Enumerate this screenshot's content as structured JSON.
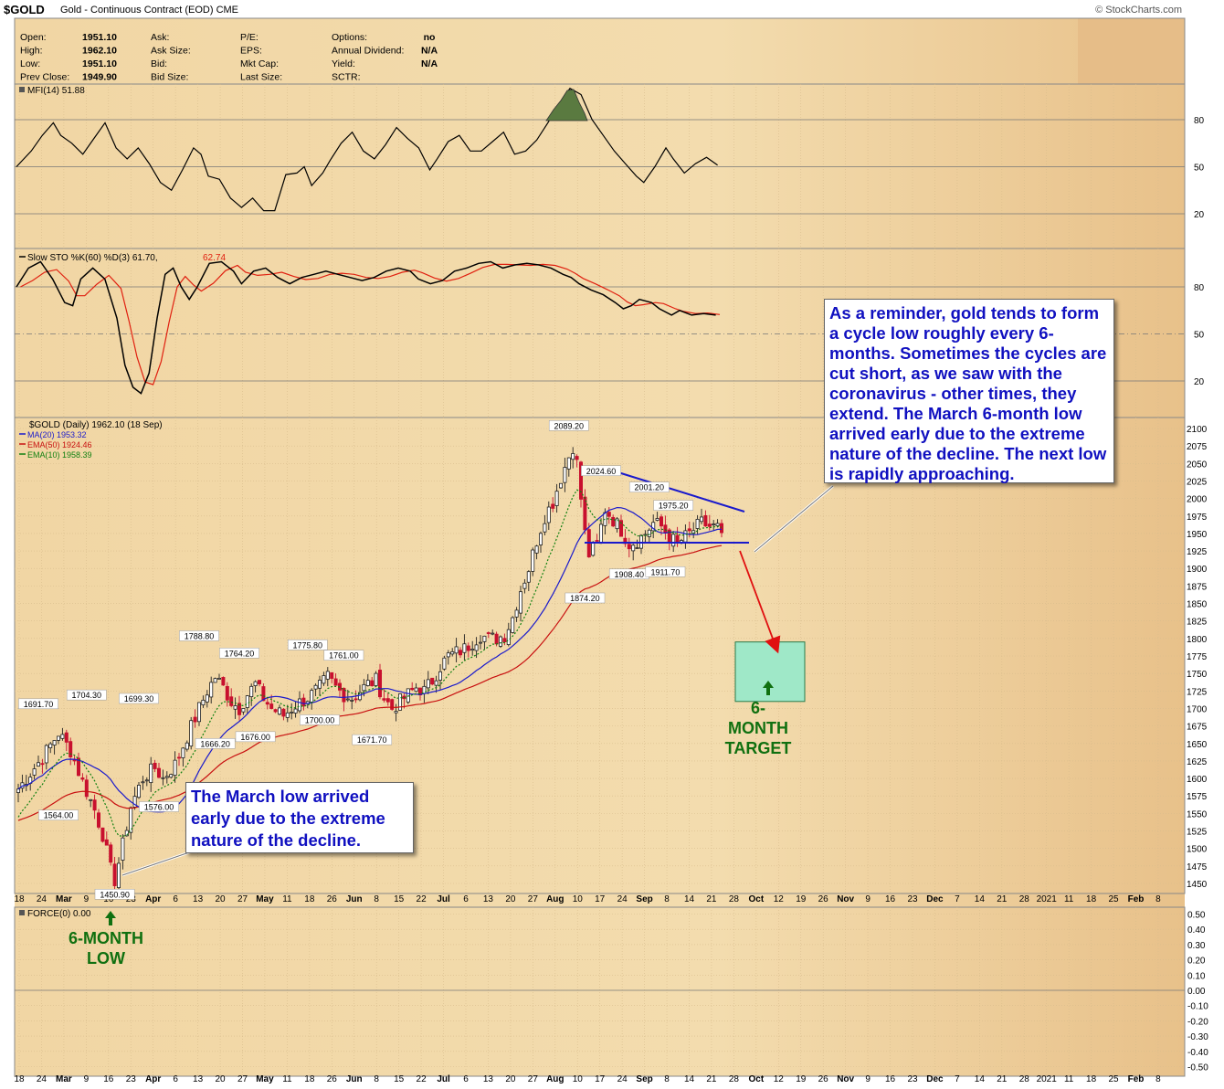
{
  "header": {
    "symbol": "$GOLD",
    "name": "Gold - Continuous Contract (EOD)",
    "exchange": "CME",
    "credit": "© StockCharts.com"
  },
  "quote": {
    "labels1": [
      "Open:",
      "High:",
      "Low:",
      "Prev Close:"
    ],
    "values1": [
      "1951.10",
      "1962.10",
      "1951.10",
      "1949.90"
    ],
    "labels2": [
      "Ask:",
      "Ask Size:",
      "Bid:",
      "Bid Size:"
    ],
    "labels3": [
      "P/E:",
      "EPS:",
      "Mkt Cap:",
      "Last Size:"
    ],
    "labels4": [
      "Options:",
      "Annual Dividend:",
      "Yield:",
      "SCTR:"
    ],
    "values4": [
      "no",
      "N/A",
      "N/A",
      ""
    ]
  },
  "panels": {
    "mfi_label": "MFI(14) 51.88",
    "sto_label_black": "Slow STO %K(60) %D(3) 61.70,",
    "sto_label_red": "62.74",
    "price_label": "$GOLD (Daily) 1962.10 (18 Sep)",
    "ma20_label": "MA(20) 1953.32",
    "ema50_label": "EMA(50) 1924.46",
    "ema10_label": "EMA(10) 1958.39",
    "force_label": "FORCE(0) 0.00"
  },
  "annotations": {
    "callout_right": "As a reminder, gold tends to form a cycle low roughly every 6-months. Sometimes the cycles are cut short, as we saw with the coronavirus - other times, they extend. The March 6-month low arrived early due to the extreme nature of the decline. The next low is rapidly approaching.",
    "callout_left": "The March low arrived early due to the extreme nature of the decline.",
    "target_label": "6-MONTH TARGET",
    "low_label": "6-MONTH LOW"
  },
  "colors": {
    "background": "#f3d9a8",
    "up_candle": "#202020",
    "down_candle": "#c8102e",
    "ma20": "#1a1acc",
    "ema50": "#c81010",
    "ema10": "#108010",
    "annotation_text": "#1010c0",
    "target_box": "#9fe8c8",
    "green_label": "#107010"
  },
  "chart_data": {
    "type": "candlestick",
    "title": "$GOLD (Daily) 1962.10 (18 Sep)",
    "x_labels": [
      "18",
      "24",
      "Mar",
      "9",
      "16",
      "23",
      "Apr",
      "6",
      "13",
      "20",
      "27",
      "May",
      "11",
      "18",
      "26",
      "Jun",
      "8",
      "15",
      "22",
      "Jul",
      "6",
      "13",
      "20",
      "27",
      "Aug",
      "10",
      "17",
      "24",
      "Sep",
      "8",
      "14",
      "21",
      "28",
      "Oct",
      "12",
      "19",
      "26",
      "Nov",
      "9",
      "16",
      "23",
      "Dec",
      "7",
      "14",
      "21",
      "28",
      "2021",
      "11",
      "18",
      "25",
      "Feb",
      "8"
    ],
    "y_ticks": [
      2100,
      2075,
      2050,
      2025,
      2000,
      1975,
      1950,
      1925,
      1900,
      1875,
      1850,
      1825,
      1800,
      1775,
      1750,
      1725,
      1700,
      1675,
      1650,
      1625,
      1600,
      1575,
      1550,
      1525,
      1500,
      1475,
      1450
    ],
    "ylim": [
      1435,
      2110
    ],
    "close_path": [
      [
        0,
        1585
      ],
      [
        6,
        1630
      ],
      [
        10,
        1665
      ],
      [
        13,
        1640
      ],
      [
        16,
        1595
      ],
      [
        19,
        1555
      ],
      [
        21,
        1520
      ],
      [
        23,
        1470
      ],
      [
        24,
        1455
      ],
      [
        26,
        1505
      ],
      [
        28,
        1560
      ],
      [
        31,
        1600
      ],
      [
        34,
        1615
      ],
      [
        36,
        1600
      ],
      [
        39,
        1620
      ],
      [
        42,
        1660
      ],
      [
        45,
        1700
      ],
      [
        47,
        1725
      ],
      [
        49,
        1745
      ],
      [
        51,
        1730
      ],
      [
        53,
        1710
      ],
      [
        55,
        1700
      ],
      [
        57,
        1720
      ],
      [
        59,
        1735
      ],
      [
        61,
        1715
      ],
      [
        63,
        1700
      ],
      [
        66,
        1690
      ],
      [
        69,
        1705
      ],
      [
        72,
        1715
      ],
      [
        75,
        1730
      ],
      [
        77,
        1745
      ],
      [
        79,
        1730
      ],
      [
        81,
        1720
      ],
      [
        83,
        1715
      ],
      [
        85,
        1725
      ],
      [
        87,
        1735
      ],
      [
        89,
        1740
      ],
      [
        91,
        1715
      ],
      [
        93,
        1700
      ],
      [
        95,
        1710
      ],
      [
        97,
        1720
      ],
      [
        99,
        1730
      ],
      [
        101,
        1725
      ],
      [
        103,
        1740
      ],
      [
        105,
        1760
      ],
      [
        107,
        1775
      ],
      [
        109,
        1780
      ],
      [
        111,
        1785
      ],
      [
        113,
        1795
      ],
      [
        115,
        1805
      ],
      [
        117,
        1800
      ],
      [
        119,
        1800
      ],
      [
        121,
        1805
      ],
      [
        123,
        1830
      ],
      [
        125,
        1870
      ],
      [
        127,
        1900
      ],
      [
        129,
        1940
      ],
      [
        131,
        1975
      ],
      [
        133,
        1995
      ],
      [
        135,
        2030
      ],
      [
        137,
        2060
      ],
      [
        138,
        2075
      ],
      [
        139,
        2050
      ],
      [
        141,
        1950
      ],
      [
        142,
        1920
      ],
      [
        144,
        1935
      ],
      [
        146,
        1985
      ],
      [
        148,
        1970
      ],
      [
        150,
        1955
      ],
      [
        152,
        1935
      ],
      [
        154,
        1940
      ],
      [
        156,
        1950
      ],
      [
        158,
        1965
      ],
      [
        160,
        1960
      ],
      [
        162,
        1945
      ],
      [
        164,
        1935
      ],
      [
        166,
        1945
      ],
      [
        168,
        1955
      ],
      [
        170,
        1965
      ],
      [
        172,
        1960
      ],
      [
        174,
        1958
      ],
      [
        175,
        1962
      ]
    ],
    "series": [
      {
        "name": "MA(20)",
        "last": 1953.32
      },
      {
        "name": "EMA(50)",
        "last": 1924.46
      },
      {
        "name": "EMA(10)",
        "last": 1958.39
      }
    ],
    "point_labels": [
      {
        "day": 5,
        "value": 1691.7,
        "text": "1691.70"
      },
      {
        "day": 17,
        "value": 1704.3,
        "text": "1704.30"
      },
      {
        "day": 10,
        "value": 1564.0,
        "text": "1564.00"
      },
      {
        "day": 24,
        "value": 1450.9,
        "text": "1450.90"
      },
      {
        "day": 30,
        "value": 1699.3,
        "text": "1699.30"
      },
      {
        "day": 35,
        "value": 1576.0,
        "text": "1576.00"
      },
      {
        "day": 45,
        "value": 1788.8,
        "text": "1788.80"
      },
      {
        "day": 49,
        "value": 1666.2,
        "text": "1666.20"
      },
      {
        "day": 55,
        "value": 1764.2,
        "text": "1764.20"
      },
      {
        "day": 59,
        "value": 1676.0,
        "text": "1676.00"
      },
      {
        "day": 72,
        "value": 1775.8,
        "text": "1775.80"
      },
      {
        "day": 75,
        "value": 1700.0,
        "text": "1700.00"
      },
      {
        "day": 81,
        "value": 1761.0,
        "text": "1761.00"
      },
      {
        "day": 88,
        "value": 1671.7,
        "text": "1671.70"
      },
      {
        "day": 137,
        "value": 2089.2,
        "text": "2089.20"
      },
      {
        "day": 141,
        "value": 1874.2,
        "text": "1874.20"
      },
      {
        "day": 145,
        "value": 2024.6,
        "text": "2024.60"
      },
      {
        "day": 152,
        "value": 1908.4,
        "text": "1908.40"
      },
      {
        "day": 157,
        "value": 2001.2,
        "text": "2001.20"
      },
      {
        "day": 161,
        "value": 1911.7,
        "text": "1911.70"
      },
      {
        "day": 163,
        "value": 1975.2,
        "text": "1975.20"
      }
    ],
    "mfi": {
      "label": "MFI(14) 51.88",
      "ticks": [
        80,
        50,
        20
      ],
      "ylim": [
        0,
        100
      ]
    },
    "slow_sto": {
      "label": "Slow STO %K(60) %D(3) 61.70, 62.74",
      "ticks": [
        80,
        50,
        20
      ],
      "ylim": [
        0,
        100
      ]
    },
    "force": {
      "label": "FORCE(0) 0.00",
      "ticks": [
        0.5,
        0.4,
        0.3,
        0.2,
        0.1,
        0.0,
        -0.1,
        -0.2,
        -0.3,
        -0.4,
        -0.5
      ],
      "ylim": [
        -0.55,
        0.55
      ]
    },
    "target_zone": {
      "low": 1710,
      "high": 1795
    }
  }
}
